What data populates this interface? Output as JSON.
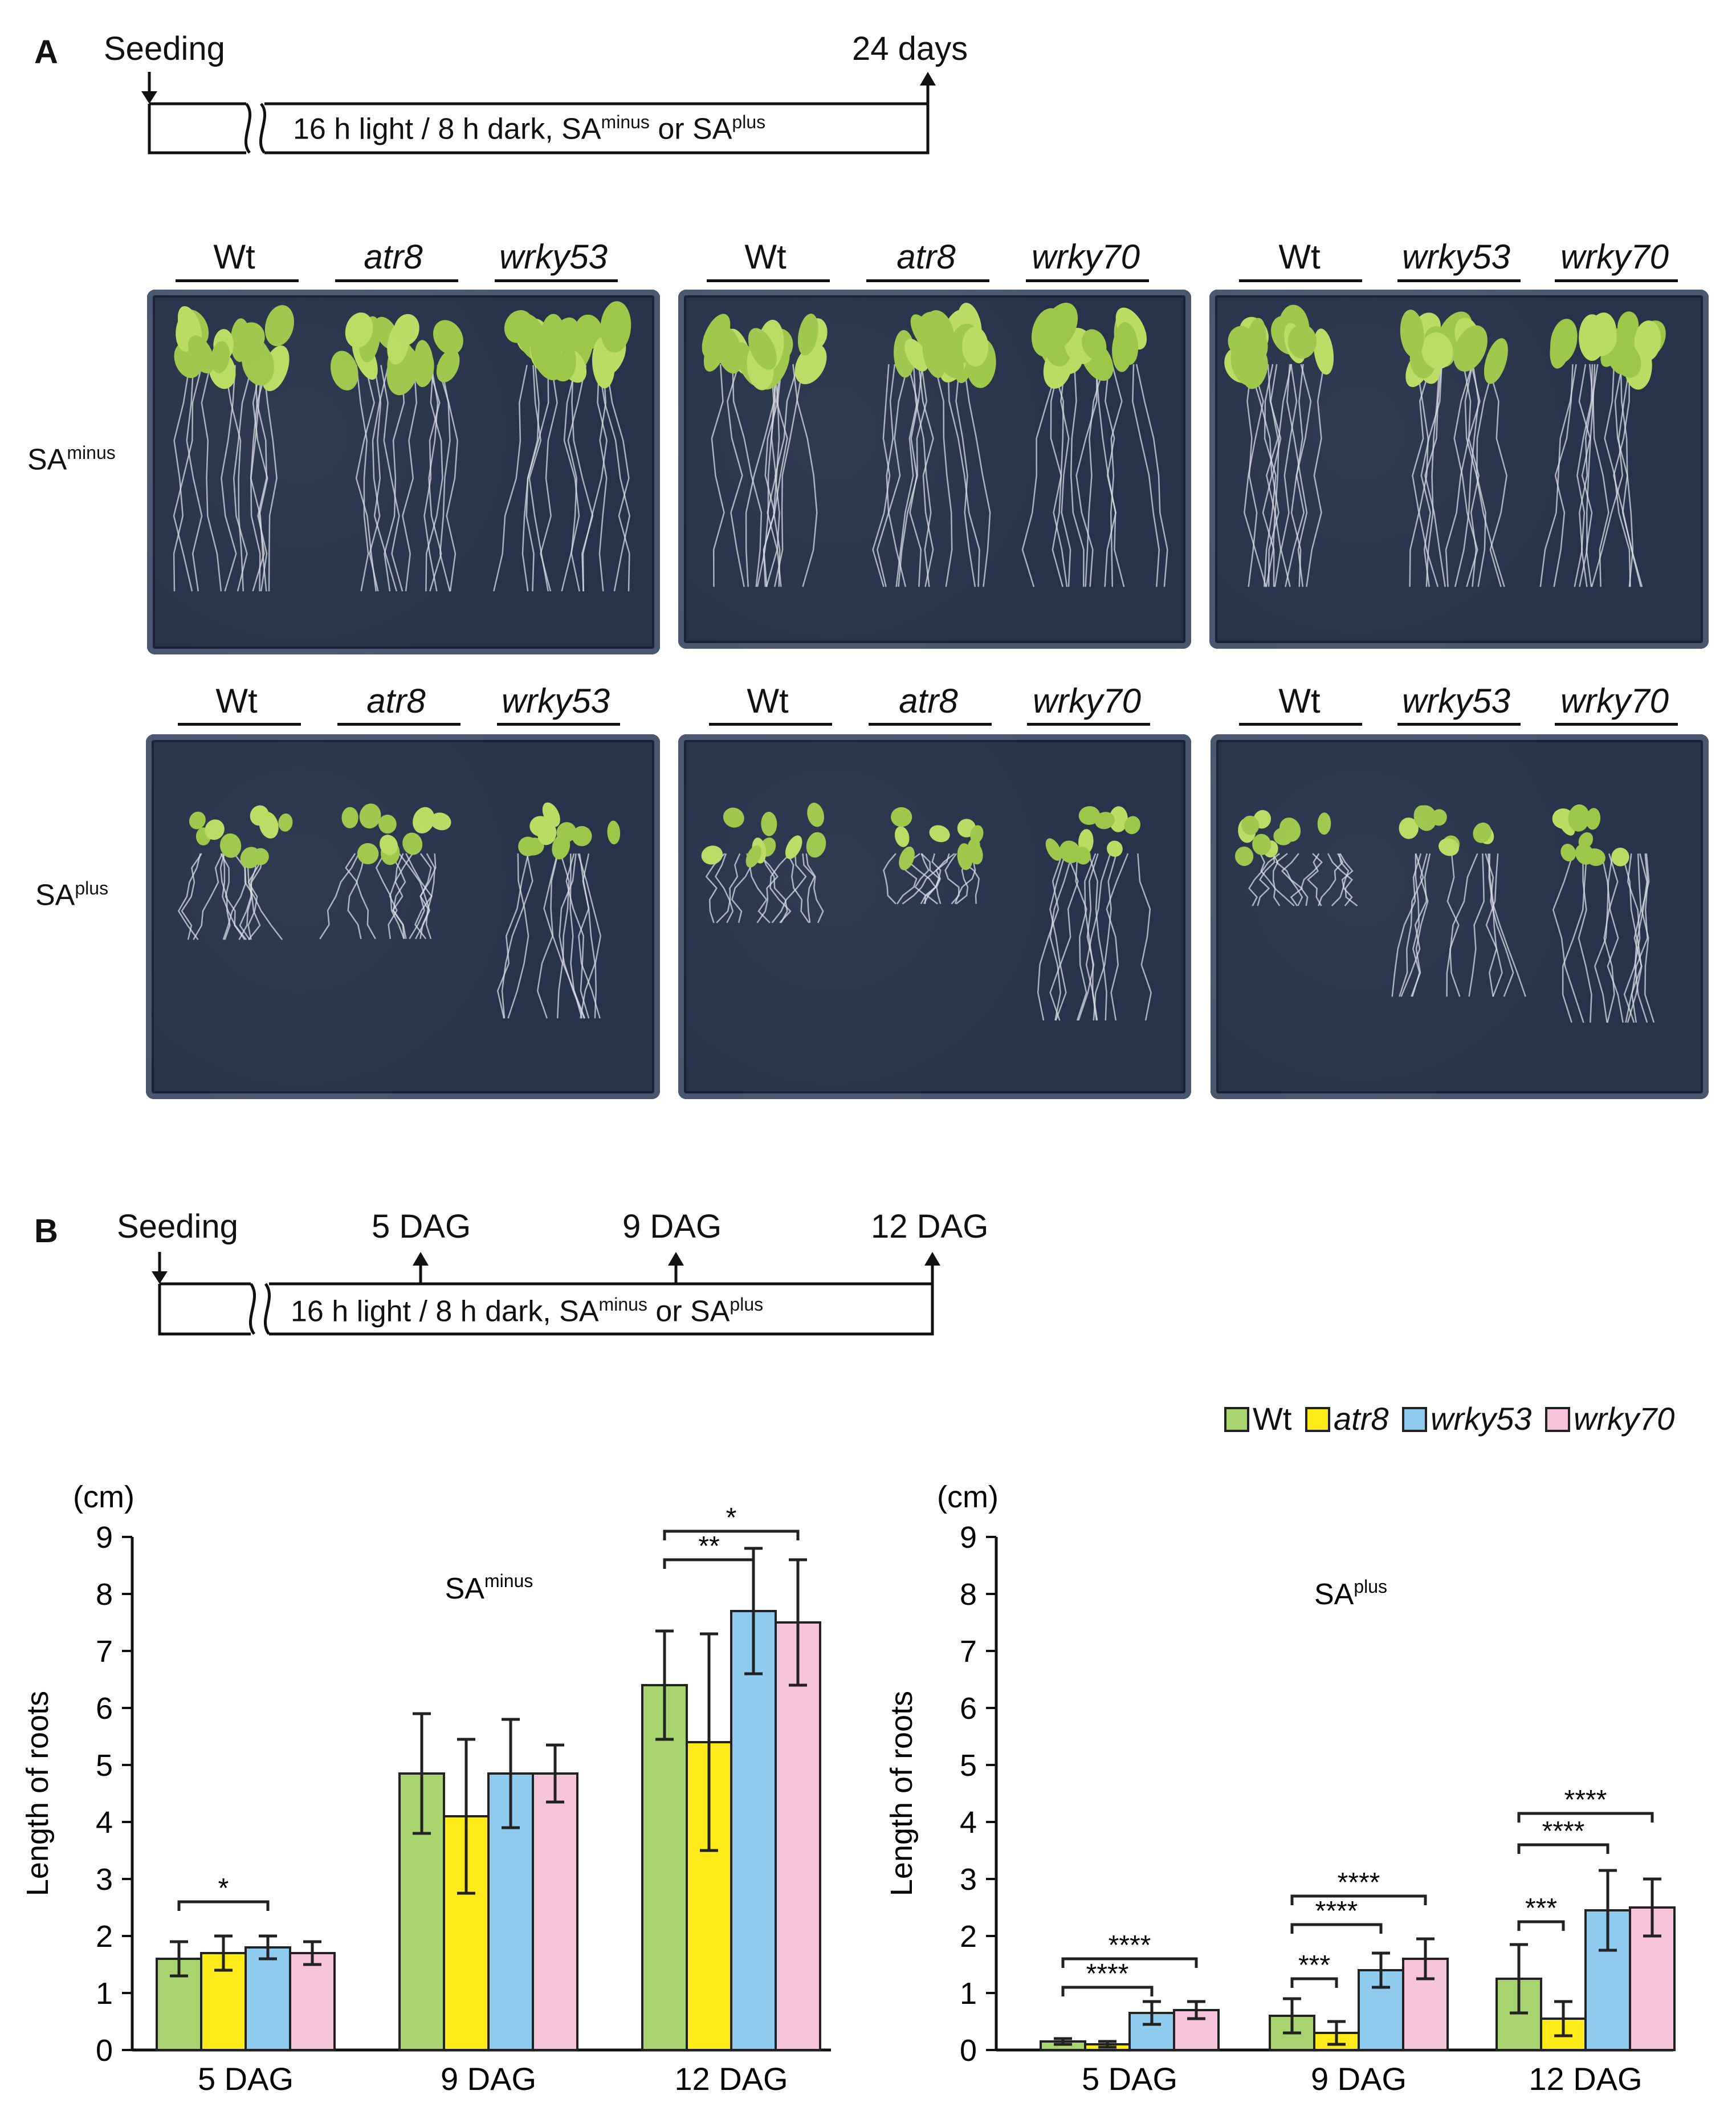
{
  "panel_a": {
    "letter": "A",
    "timeline": {
      "start_label": "Seeding",
      "end_label": "24 days",
      "condition_prefix": "16 h light / 8 h dark, SA",
      "minus_sup": "minus",
      "or_text": "or SA",
      "plus_sup": "plus"
    },
    "rows": [
      {
        "label_main": "SA",
        "label_sup": "minus"
      },
      {
        "label_main": "SA",
        "label_sup": "plus"
      }
    ],
    "plate_groups": [
      [
        "Wt",
        "atr8",
        "wrky53"
      ],
      [
        "Wt",
        "atr8",
        "wrky70"
      ],
      [
        "Wt",
        "wrky53",
        "wrky70"
      ]
    ]
  },
  "panel_b": {
    "letter": "B",
    "timeline": {
      "start_label": "Seeding",
      "markers": [
        "5 DAG",
        "9 DAG",
        "12 DAG"
      ],
      "condition_prefix": "16 h light / 8 h dark, SA",
      "minus_sup": "minus",
      "or_text": "or SA",
      "plus_sup": "plus"
    },
    "legend": [
      {
        "name": "Wt",
        "color": "#a8d46f",
        "italic": false
      },
      {
        "name": "atr8",
        "color": "#ffeb1a",
        "italic": true
      },
      {
        "name": "wrky53",
        "color": "#8fcbef",
        "italic": true
      },
      {
        "name": "wrky70",
        "color": "#f6c4da",
        "italic": true
      }
    ]
  },
  "chart_data": [
    {
      "type": "bar",
      "title": "SA",
      "title_sup": "minus",
      "unit": "(cm)",
      "ylabel": "Length of roots",
      "ylim": [
        0,
        9
      ],
      "yticks": [
        "0",
        "1",
        "2",
        "3",
        "4",
        "5",
        "6",
        "7",
        "8",
        "9"
      ],
      "categories": [
        "5 DAG",
        "9 DAG",
        "12 DAG"
      ],
      "series": [
        {
          "name": "Wt",
          "color": "#a8d46f",
          "values": [
            1.6,
            4.85,
            6.4
          ],
          "errors": [
            0.3,
            1.05,
            0.95
          ]
        },
        {
          "name": "atr8",
          "color": "#ffeb1a",
          "values": [
            1.7,
            4.1,
            5.4
          ],
          "errors": [
            0.3,
            1.35,
            1.9
          ]
        },
        {
          "name": "wrky53",
          "color": "#8fcbef",
          "values": [
            1.8,
            4.85,
            7.7
          ],
          "errors": [
            0.2,
            0.95,
            1.1
          ]
        },
        {
          "name": "wrky70",
          "color": "#f6c4da",
          "values": [
            1.7,
            4.85,
            7.5
          ],
          "errors": [
            0.2,
            0.5,
            1.1
          ]
        }
      ],
      "significance": [
        {
          "category": 0,
          "from": 0,
          "to": 2,
          "label": "*",
          "y": 2.6
        },
        {
          "category": 2,
          "from": 0,
          "to": 2,
          "label": "**",
          "y": 8.6
        },
        {
          "category": 2,
          "from": 0,
          "to": 3,
          "label": "*",
          "y": 9.1
        }
      ]
    },
    {
      "type": "bar",
      "title": "SA",
      "title_sup": "plus",
      "unit": "(cm)",
      "ylabel": "Length of roots",
      "ylim": [
        0,
        9
      ],
      "yticks": [
        "0",
        "1",
        "2",
        "3",
        "4",
        "5",
        "6",
        "7",
        "8",
        "9"
      ],
      "categories": [
        "5 DAG",
        "9 DAG",
        "12 DAG"
      ],
      "series": [
        {
          "name": "Wt",
          "color": "#a8d46f",
          "values": [
            0.15,
            0.6,
            1.25
          ],
          "errors": [
            0.05,
            0.3,
            0.6
          ]
        },
        {
          "name": "atr8",
          "color": "#ffeb1a",
          "values": [
            0.1,
            0.3,
            0.55
          ],
          "errors": [
            0.05,
            0.2,
            0.3
          ]
        },
        {
          "name": "wrky53",
          "color": "#8fcbef",
          "values": [
            0.65,
            1.4,
            2.45
          ],
          "errors": [
            0.2,
            0.3,
            0.7
          ]
        },
        {
          "name": "wrky70",
          "color": "#f6c4da",
          "values": [
            0.7,
            1.6,
            2.5
          ],
          "errors": [
            0.15,
            0.35,
            0.5
          ]
        }
      ],
      "significance": [
        {
          "category": 0,
          "from": 0,
          "to": 2,
          "label": "****",
          "y": 1.1
        },
        {
          "category": 0,
          "from": 0,
          "to": 3,
          "label": "****",
          "y": 1.6
        },
        {
          "category": 1,
          "from": 0,
          "to": 1,
          "label": "***",
          "y": 1.25
        },
        {
          "category": 1,
          "from": 0,
          "to": 2,
          "label": "****",
          "y": 2.2
        },
        {
          "category": 1,
          "from": 0,
          "to": 3,
          "label": "****",
          "y": 2.7
        },
        {
          "category": 2,
          "from": 0,
          "to": 1,
          "label": "***",
          "y": 2.25
        },
        {
          "category": 2,
          "from": 0,
          "to": 2,
          "label": "****",
          "y": 3.6
        },
        {
          "category": 2,
          "from": 0,
          "to": 3,
          "label": "****",
          "y": 4.15
        }
      ]
    }
  ]
}
